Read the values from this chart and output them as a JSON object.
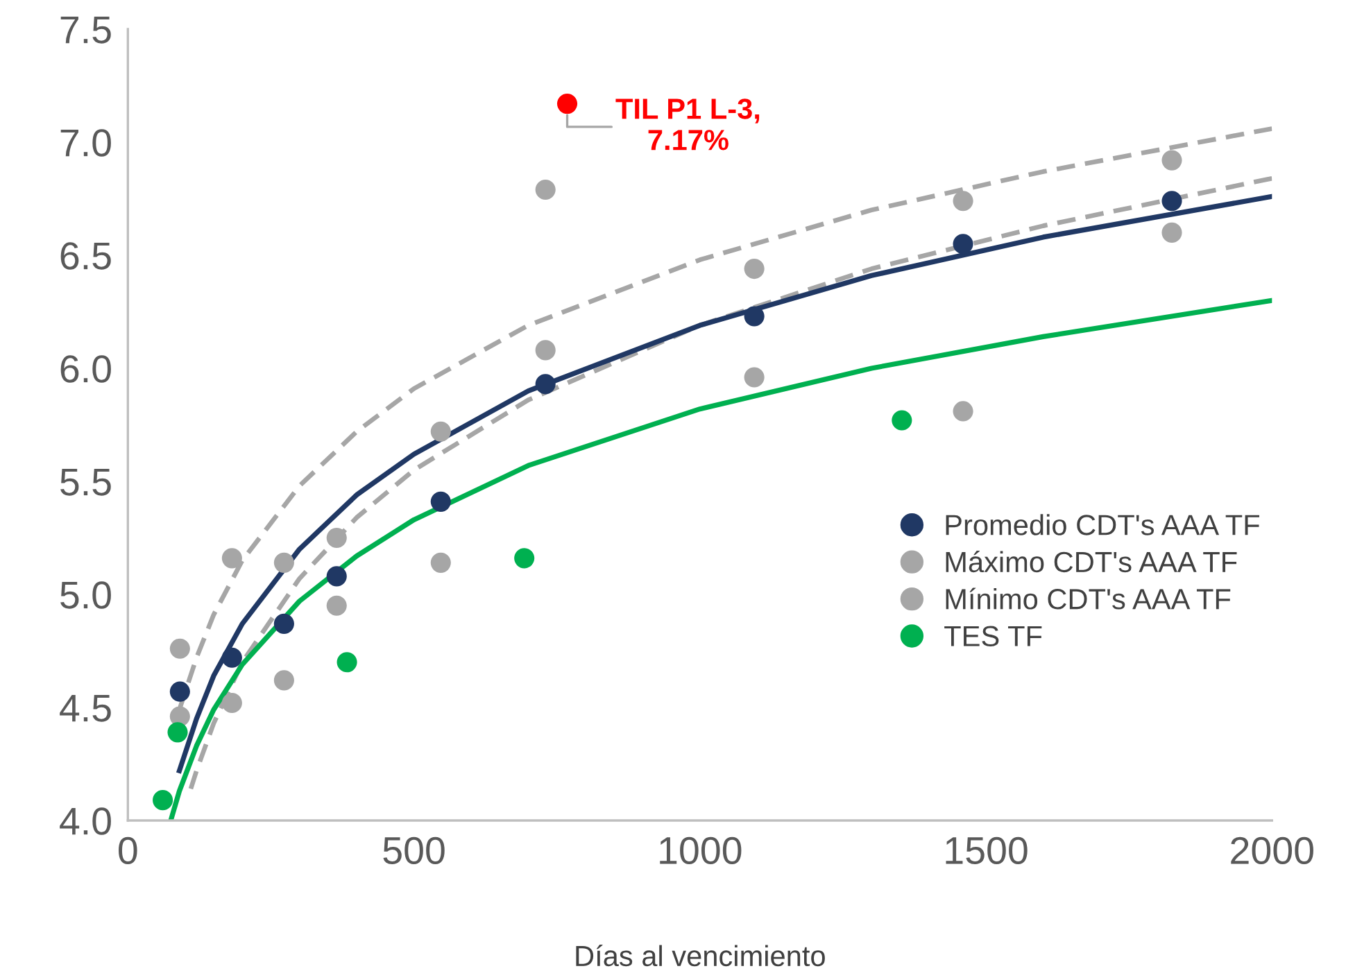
{
  "chart_data": {
    "type": "scatter",
    "xlabel": "Días al vencimiento",
    "xlim": [
      0,
      2000
    ],
    "ylim": [
      4.0,
      7.5
    ],
    "xticks": [
      0,
      500,
      1000,
      1500,
      2000
    ],
    "yticks": [
      {
        "value": 4,
        "label": "4.0"
      },
      {
        "value": 4.5,
        "label": "4.5"
      },
      {
        "value": 5,
        "label": "5.0"
      },
      {
        "value": 5.5,
        "label": "5.5"
      },
      {
        "value": 6,
        "label": "6.0"
      },
      {
        "value": 6.5,
        "label": "6.5"
      },
      {
        "value": 7,
        "label": "7.0"
      },
      {
        "value": 7.5,
        "label": "7.5"
      }
    ],
    "grid": false,
    "legend": "right",
    "marker": "circle",
    "series": [
      {
        "type": "line",
        "color": "#a6a6a6",
        "line_style": "dashed",
        "marker": "none",
        "x": [
          90,
          120,
          150,
          200,
          300,
          400,
          500,
          700,
          1000,
          1300,
          1600,
          2000
        ],
        "values": [
          4.49,
          4.72,
          4.91,
          5.15,
          5.48,
          5.72,
          5.91,
          6.19,
          6.48,
          6.7,
          6.87,
          7.06
        ]
      },
      {
        "type": "line",
        "color": "#a6a6a6",
        "line_style": "dashed",
        "marker": "none",
        "x": [
          110,
          120,
          150,
          200,
          300,
          400,
          500,
          700,
          1000,
          1300,
          1600,
          2000
        ],
        "values": [
          4.14,
          4.22,
          4.43,
          4.7,
          5.07,
          5.34,
          5.55,
          5.86,
          6.19,
          6.44,
          6.63,
          6.84
        ]
      },
      {
        "type": "line",
        "color": "#00b050",
        "line_style": "solid",
        "marker": "none",
        "x": [
          75,
          90,
          120,
          150,
          200,
          300,
          400,
          500,
          700,
          1000,
          1300,
          1600,
          2000
        ],
        "values": [
          4.0,
          4.13,
          4.33,
          4.49,
          4.69,
          4.97,
          5.17,
          5.33,
          5.57,
          5.82,
          6.0,
          6.14,
          6.3
        ]
      },
      {
        "type": "line",
        "color": "#203864",
        "line_style": "solid",
        "marker": "none",
        "x": [
          90,
          120,
          150,
          200,
          300,
          400,
          500,
          700,
          1000,
          1300,
          1600,
          2000
        ],
        "values": [
          4.22,
          4.45,
          4.64,
          4.87,
          5.2,
          5.44,
          5.62,
          5.9,
          6.19,
          6.41,
          6.58,
          6.76
        ]
      },
      {
        "name": "Promedio CDT's AAA TF",
        "color": "#203864",
        "x": [
          91,
          182,
          273,
          365,
          547,
          730,
          1095,
          1460,
          1825
        ],
        "values": [
          4.57,
          4.72,
          4.87,
          5.08,
          5.41,
          5.93,
          6.23,
          6.55,
          6.74
        ]
      },
      {
        "name": "Máximo CDT's AAA TF",
        "color": "#a6a6a6",
        "x": [
          91,
          182,
          273,
          365,
          547,
          730,
          1095,
          1460,
          1825
        ],
        "values": [
          4.76,
          5.16,
          5.14,
          5.25,
          5.72,
          6.79,
          6.44,
          6.74,
          6.92
        ]
      },
      {
        "name": "Mínimo CDT's AAA TF",
        "color": "#a6a6a6",
        "x": [
          91,
          182,
          273,
          365,
          547,
          730,
          1095,
          1460,
          1825
        ],
        "values": [
          4.46,
          4.52,
          4.62,
          4.95,
          5.14,
          6.08,
          5.96,
          5.81,
          6.6
        ]
      },
      {
        "name": "TES TF",
        "color": "#00b050",
        "x": [
          61,
          87,
          383,
          693,
          1353
        ],
        "values": [
          4.09,
          4.39,
          4.7,
          5.16,
          5.77
        ]
      },
      {
        "color": "#ff0000",
        "x": [
          768
        ],
        "values": [
          7.17
        ]
      }
    ],
    "annotations": [
      {
        "text": "TIL P1 L-3,\n7.17%",
        "x": 768,
        "y": 7.17
      }
    ]
  }
}
